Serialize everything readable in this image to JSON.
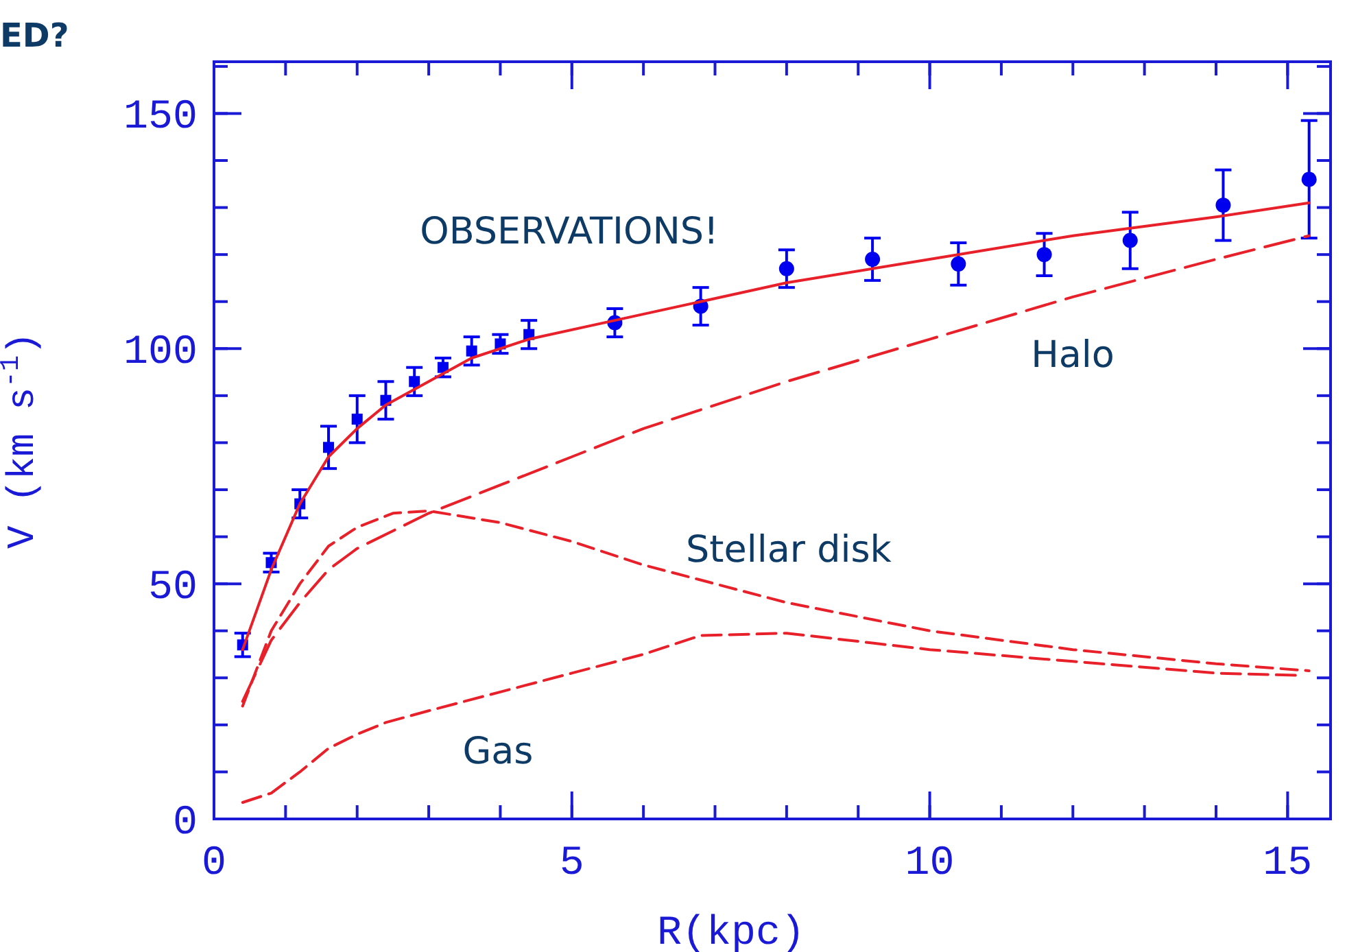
{
  "chart_data": {
    "type": "line",
    "title": "ED?",
    "xlabel": "R(kpc)",
    "ylabel": "V (km s$^{-1}$)",
    "xlim": [
      0,
      15.6
    ],
    "xticks": [
      0,
      5,
      10,
      15
    ],
    "ylim": [
      0,
      161
    ],
    "yticks": [
      0,
      50,
      100,
      150
    ],
    "grid": false,
    "series": [
      {
        "type": "scatter",
        "name": "OBSERVATIONS!",
        "marker": "square",
        "color": "#0000ee",
        "x": [
          0.4,
          0.8,
          1.2,
          1.6,
          2.0,
          2.4,
          2.8,
          3.2,
          3.6,
          4.0,
          4.4
        ],
        "values": [
          37,
          54.5,
          67,
          79,
          85,
          89,
          93,
          96,
          99.5,
          101,
          103
        ],
        "errors": [
          2.5,
          2,
          3,
          4.5,
          5,
          4,
          3,
          2,
          3,
          2,
          3
        ]
      },
      {
        "type": "scatter",
        "marker": "circle",
        "color": "#0000ee",
        "x": [
          5.6,
          6.8,
          8.0,
          9.2,
          10.4,
          11.6,
          12.8,
          14.1,
          15.3
        ],
        "values": [
          105.5,
          109,
          117,
          119,
          118,
          120,
          123,
          130.5,
          136
        ],
        "errors": [
          3,
          4,
          4,
          4.5,
          4.5,
          4.5,
          6,
          7.5,
          12.5
        ]
      },
      {
        "line_style": "solid",
        "color": "#e8202a",
        "x": [
          0.4,
          0.8,
          1.2,
          1.6,
          2,
          2.4,
          3,
          3.6,
          4.4,
          5.6,
          6.8,
          8,
          10,
          12,
          14,
          15.3
        ],
        "values": [
          36,
          53,
          67,
          77,
          83,
          88,
          93,
          98,
          102,
          106,
          110,
          114,
          119,
          124,
          128,
          131
        ]
      },
      {
        "name": "Halo",
        "line_style": "dashed",
        "color": "#e8202a",
        "x": [
          0.4,
          0.8,
          1.2,
          1.6,
          2,
          3,
          4,
          5,
          6,
          7,
          8,
          10,
          12,
          14,
          15.3
        ],
        "values": [
          25,
          38,
          46,
          53,
          57.5,
          65,
          71,
          77,
          83,
          88,
          93,
          102,
          111,
          119,
          124
        ]
      },
      {
        "name": "Stellar disk",
        "line_style": "dashed",
        "color": "#e8202a",
        "x": [
          0.4,
          0.8,
          1.2,
          1.6,
          2,
          2.5,
          3,
          4,
          5,
          6,
          7,
          8,
          10,
          12,
          14,
          15.3
        ],
        "values": [
          24,
          40,
          50,
          58,
          62,
          65,
          65.5,
          63,
          59,
          54,
          50,
          46,
          40,
          36,
          33,
          31.5
        ]
      },
      {
        "name": "Gas",
        "line_style": "dashed",
        "color": "#e8202a",
        "x": [
          0.4,
          0.8,
          1.2,
          1.6,
          2,
          2.4,
          3,
          4,
          5,
          6,
          6.8,
          8,
          10,
          12,
          14,
          15.2
        ],
        "values": [
          3.5,
          5.5,
          10,
          15,
          18,
          20.5,
          23,
          27,
          31,
          35,
          39,
          39.5,
          36,
          33.5,
          31,
          30.5
        ]
      }
    ]
  }
}
